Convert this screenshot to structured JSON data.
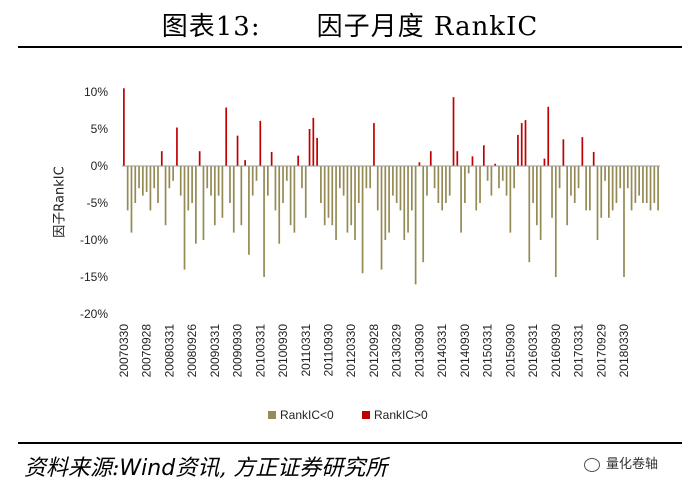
{
  "header": {
    "title_num": "图表13:",
    "title_text": "因子月度 RankIC"
  },
  "source": {
    "prefix": "资料来源:",
    "wind": "Wind",
    "suffix": "资讯, 方正证券研究所"
  },
  "watermark": {
    "text": "量化卷轴"
  },
  "colors": {
    "negative": "#948a54",
    "positive": "#c00000"
  },
  "chart_data": {
    "type": "bar",
    "title": "",
    "xlabel": "",
    "ylabel": "因子RankIC",
    "ylim": [
      -0.2,
      0.1
    ],
    "y_ticks": [
      0.1,
      0.05,
      0.0,
      -0.05,
      -0.1,
      -0.15,
      -0.2
    ],
    "y_tick_labels": [
      "10%",
      "5%",
      "0%",
      "-5%",
      "-10%",
      "-15%",
      "-20%"
    ],
    "x_tick_labels": [
      "20070330",
      "20070928",
      "20080331",
      "20080926",
      "20090331",
      "20090930",
      "20100331",
      "20100930",
      "20110331",
      "20110930",
      "20120330",
      "20120928",
      "20130329",
      "20130930",
      "20140331",
      "20140930",
      "20150331",
      "20150930",
      "20160331",
      "20160930",
      "20170331",
      "20170929",
      "20180330"
    ],
    "months_between_ticks": 6,
    "start_month": "2007-03",
    "legend": [
      "RankIC<0",
      "RankIC>0"
    ],
    "legend_position": "bottom",
    "grid": false,
    "series": [
      {
        "values": [
          0.105,
          -0.06,
          -0.09,
          -0.05,
          -0.03,
          -0.04,
          -0.035,
          -0.06,
          -0.03,
          -0.05,
          0.02,
          -0.08,
          -0.03,
          -0.02,
          0.052,
          -0.04,
          -0.14,
          -0.06,
          -0.05,
          -0.105,
          0.02,
          -0.1,
          -0.03,
          -0.04,
          -0.08,
          -0.04,
          -0.07,
          0.079,
          -0.05,
          -0.09,
          0.041,
          -0.08,
          0.008,
          -0.12,
          -0.04,
          -0.02,
          0.061,
          -0.15,
          -0.04,
          0.019,
          -0.06,
          -0.105,
          -0.05,
          -0.02,
          -0.08,
          -0.09,
          0.014,
          -0.03,
          -0.07,
          0.05,
          0.065,
          0.038,
          -0.05,
          -0.08,
          -0.07,
          -0.08,
          -0.1,
          -0.03,
          -0.04,
          -0.09,
          -0.08,
          -0.1,
          -0.05,
          -0.145,
          -0.03,
          -0.03,
          0.058,
          -0.06,
          -0.14,
          -0.1,
          -0.09,
          -0.04,
          -0.05,
          -0.06,
          -0.1,
          -0.09,
          -0.06,
          -0.16,
          0.005,
          -0.13,
          -0.04,
          0.02,
          -0.03,
          -0.05,
          -0.06,
          -0.05,
          -0.04,
          0.093,
          0.02,
          -0.09,
          -0.05,
          -0.01,
          0.013,
          -0.06,
          -0.05,
          0.028,
          -0.02,
          -0.04,
          0.003,
          -0.03,
          -0.02,
          -0.04,
          -0.09,
          -0.03,
          0.042,
          0.058,
          0.062,
          -0.13,
          -0.05,
          -0.08,
          -0.1,
          0.01,
          0.08,
          -0.07,
          -0.15,
          -0.03,
          0.036,
          -0.08,
          -0.04,
          -0.05,
          -0.03,
          0.039,
          -0.06,
          -0.06,
          0.019,
          -0.1,
          -0.07,
          -0.02,
          -0.07,
          -0.06,
          -0.05,
          -0.03,
          -0.15,
          -0.03,
          -0.06,
          -0.05,
          -0.04,
          -0.05,
          -0.05,
          -0.06,
          -0.05,
          -0.06
        ]
      }
    ]
  }
}
